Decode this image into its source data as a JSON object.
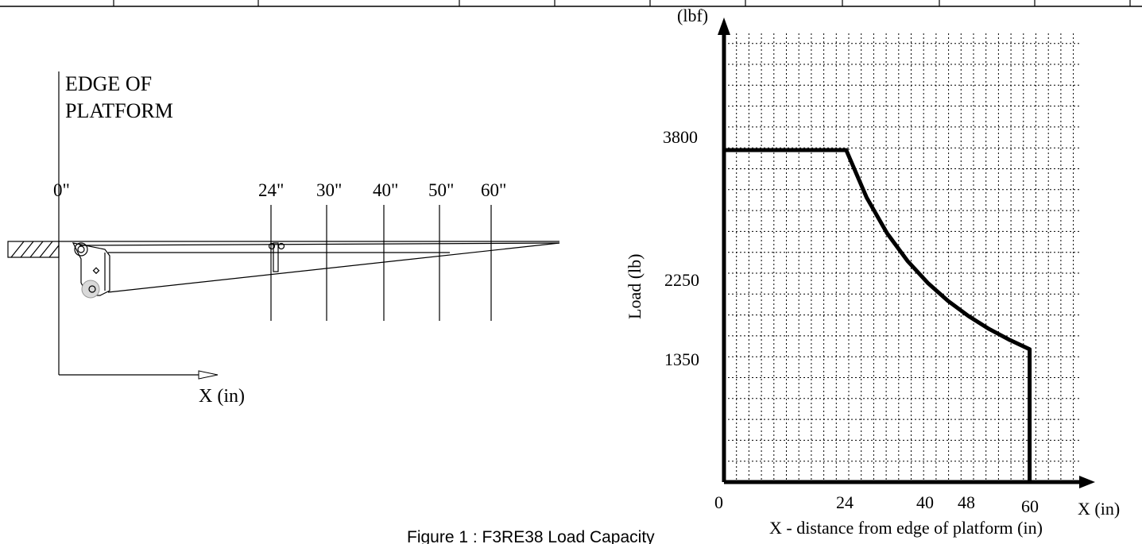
{
  "caption": "Figure 1 : F3RE38 Load Capacity",
  "left_diagram": {
    "edge_label_line1": "EDGE OF",
    "edge_label_line2": "PLATFORM",
    "x_axis_label": "X (in)",
    "positions": [
      "0\"",
      "24\"",
      "30\"",
      "40\"",
      "50\"",
      "60\""
    ]
  },
  "chart_data": {
    "type": "line",
    "x": [
      0,
      0,
      24,
      28,
      32,
      36,
      40,
      44,
      48,
      52,
      56,
      60,
      60
    ],
    "y": [
      0,
      3800,
      3800,
      3257,
      2850,
      2533,
      2280,
      2073,
      1900,
      1754,
      1629,
      1520,
      0
    ],
    "xlim": [
      0,
      67
    ],
    "ylim": [
      0,
      6000
    ],
    "x_ticks": [
      "0",
      "24",
      "40",
      "48",
      "60"
    ],
    "y_ticks": [
      "1350",
      "2250",
      "3800"
    ],
    "y_unit": "(lbf)",
    "ylabel": "Load (lb)",
    "x_axis_end_label": "X (in)",
    "xlabel": "X - distance from edge of platform (in)",
    "grid": true
  }
}
